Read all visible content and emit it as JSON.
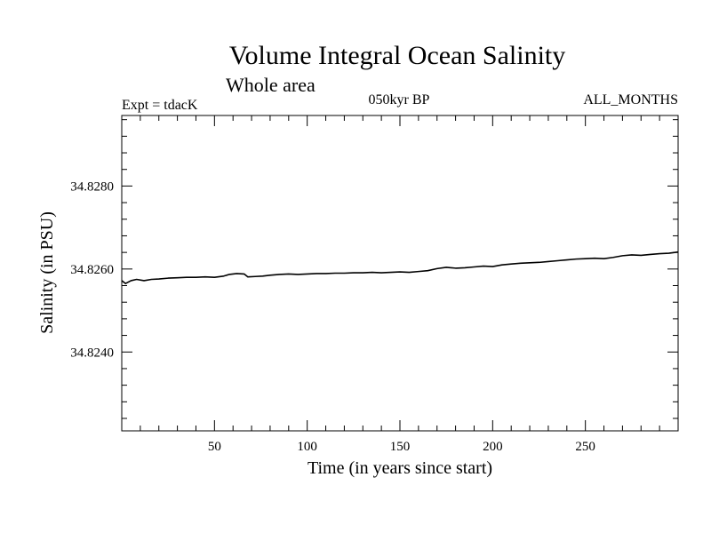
{
  "chart_data": {
    "type": "line",
    "title": "Volume Integral Ocean Salinity",
    "subtitle": "Whole area",
    "annotations": {
      "left": "Expt = tdacK",
      "center": "050kyr BP",
      "right": "ALL_MONTHS"
    },
    "xlabel": "Time (in years since start)",
    "ylabel": "Salinity (in PSU)",
    "xlim": [
      0,
      300
    ],
    "ylim": [
      34.8221,
      34.8297
    ],
    "xticks": [
      {
        "value": 50,
        "label": "50"
      },
      {
        "value": 100,
        "label": "100"
      },
      {
        "value": 150,
        "label": "150"
      },
      {
        "value": 200,
        "label": "200"
      },
      {
        "value": 250,
        "label": "250"
      }
    ],
    "yticks": [
      {
        "value": 34.824,
        "label": "34.8240"
      },
      {
        "value": 34.826,
        "label": "34.8260"
      },
      {
        "value": 34.828,
        "label": "34.8280"
      }
    ],
    "grid": false,
    "series": [
      {
        "name": "Salinity",
        "color": "#000000",
        "x": [
          0,
          2,
          5,
          8,
          12,
          16,
          20,
          25,
          30,
          35,
          40,
          45,
          50,
          55,
          58,
          62,
          66,
          68,
          72,
          76,
          80,
          85,
          90,
          95,
          100,
          105,
          110,
          115,
          120,
          125,
          130,
          135,
          140,
          145,
          150,
          155,
          160,
          165,
          170,
          175,
          180,
          185,
          190,
          195,
          200,
          205,
          210,
          215,
          220,
          225,
          230,
          235,
          240,
          245,
          250,
          255,
          260,
          265,
          270,
          275,
          280,
          285,
          290,
          295,
          300
        ],
        "y": [
          34.82572,
          34.82565,
          34.82572,
          34.82575,
          34.82572,
          34.82575,
          34.82576,
          34.82578,
          34.82579,
          34.8258,
          34.8258,
          34.82581,
          34.8258,
          34.82583,
          34.82587,
          34.82589,
          34.82588,
          34.82581,
          34.82582,
          34.82583,
          34.82585,
          34.82587,
          34.82588,
          34.82587,
          34.82588,
          34.82589,
          34.82589,
          34.8259,
          34.8259,
          34.82591,
          34.82591,
          34.82592,
          34.82591,
          34.82592,
          34.82593,
          34.82592,
          34.82594,
          34.82596,
          34.82601,
          34.82604,
          34.82602,
          34.82603,
          34.82605,
          34.82607,
          34.82606,
          34.8261,
          34.82612,
          34.82614,
          34.82615,
          34.82616,
          34.82618,
          34.8262,
          34.82622,
          34.82624,
          34.82625,
          34.82626,
          34.82625,
          34.82628,
          34.82632,
          34.82634,
          34.82633,
          34.82635,
          34.82637,
          34.82638,
          34.82641
        ]
      }
    ]
  }
}
